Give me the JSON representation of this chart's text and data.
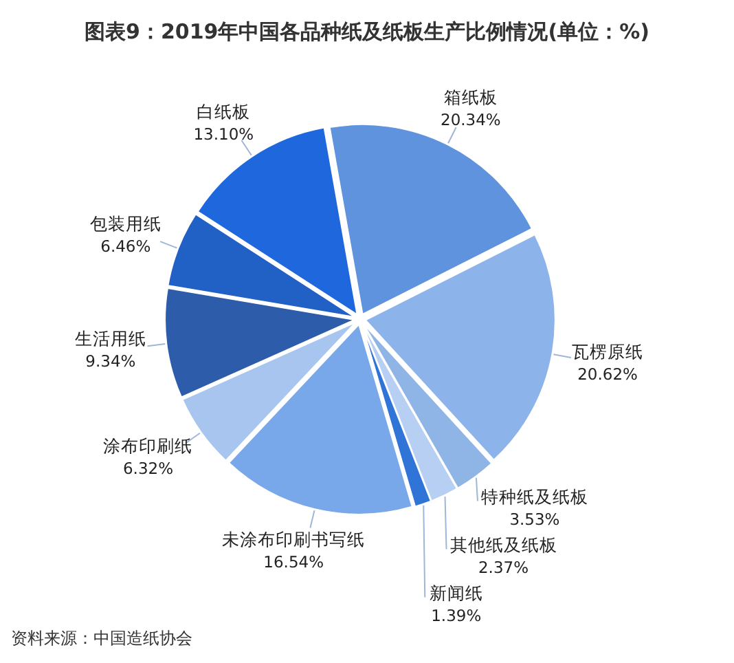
{
  "chart_data": {
    "type": "pie",
    "title": "图表9：2019年中国各品种纸及纸板生产比例情况(单位：%)",
    "categories": [
      "箱纸板",
      "瓦楞原纸",
      "特种纸及纸板",
      "其他纸及纸板",
      "新闻纸",
      "未涂布印刷书写纸",
      "涂布印刷纸",
      "生活用纸",
      "包装用纸",
      "白纸板"
    ],
    "values": [
      20.34,
      20.62,
      3.53,
      2.37,
      1.39,
      16.54,
      6.32,
      9.34,
      6.46,
      13.1
    ],
    "value_labels": [
      "20.34%",
      "20.62%",
      "3.53%",
      "2.37%",
      "1.39%",
      "16.54%",
      "6.32%",
      "9.34%",
      "6.46%",
      "13.10%"
    ],
    "colors": [
      "#5f93dd",
      "#8cb3ea",
      "#8fb4e6",
      "#b6cff2",
      "#2f74d6",
      "#78a7ea",
      "#a8c5ef",
      "#2d5cab",
      "#2160c4",
      "#1f67dc"
    ],
    "annotations": [
      "资料来源：中国造纸协会"
    ]
  }
}
